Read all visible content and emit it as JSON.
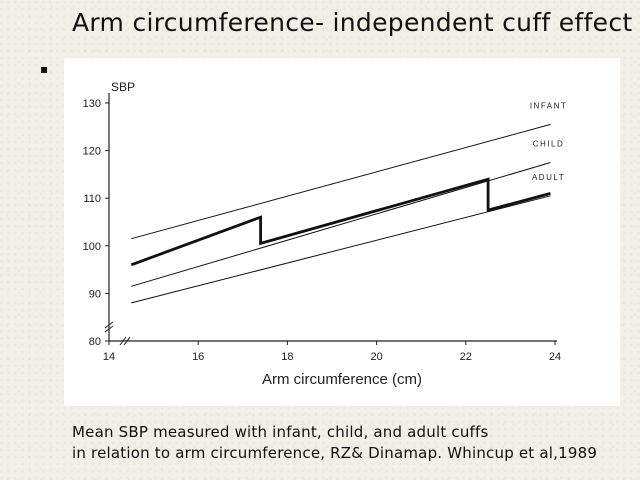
{
  "slide": {
    "title": "Arm circumference- independent cuff effect",
    "bullet": "▪",
    "caption_line1": "Mean SBP  measured with infant, child, and adult cuffs",
    "caption_line2": "in relation to arm circumference, RZ& Dinamap. Whincup et al,1989"
  },
  "chart_data": {
    "type": "line",
    "title": "",
    "xlabel": "Arm circumference (cm)",
    "ylabel": "SBP",
    "xlim": [
      14,
      24
    ],
    "ylim": [
      80,
      130
    ],
    "x_ticks": [
      14,
      16,
      18,
      20,
      22,
      24
    ],
    "y_ticks": [
      80,
      90,
      100,
      110,
      120,
      130
    ],
    "grid": false,
    "axis_break_marks": true,
    "series": [
      {
        "name": "INFANT",
        "style": "thin",
        "points": [
          [
            14.5,
            101.5
          ],
          [
            23.9,
            125.5
          ]
        ]
      },
      {
        "name": "CHILD",
        "style": "thin",
        "points": [
          [
            14.5,
            91.5
          ],
          [
            23.9,
            117.5
          ]
        ]
      },
      {
        "name": "ADULT",
        "style": "thin",
        "points": [
          [
            14.5,
            88
          ],
          [
            23.9,
            110.5
          ]
        ]
      },
      {
        "name": "",
        "style": "thick",
        "points": [
          [
            14.5,
            96
          ],
          [
            17.4,
            106
          ],
          [
            17.4,
            100.5
          ],
          [
            22.5,
            114
          ],
          [
            22.5,
            107.5
          ],
          [
            23.9,
            111
          ]
        ]
      }
    ]
  }
}
